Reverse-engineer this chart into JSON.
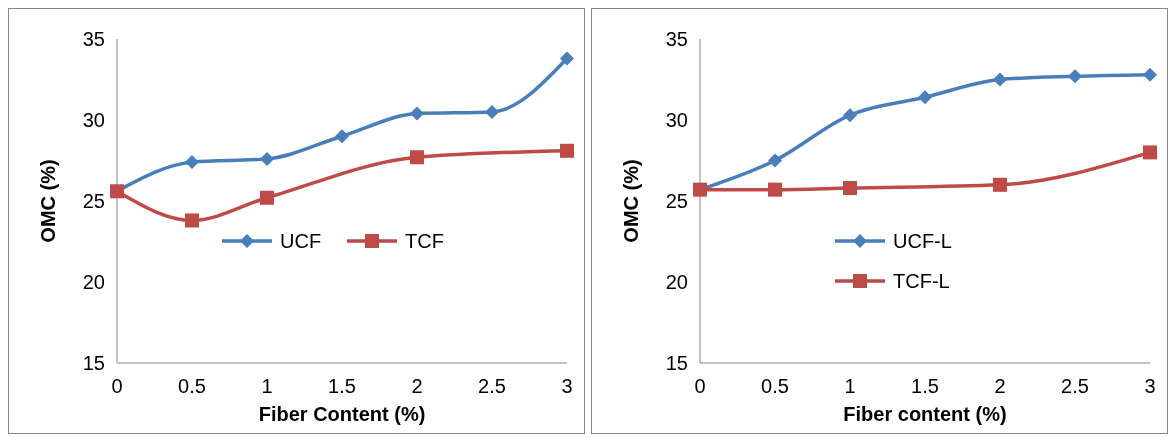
{
  "chart_data": [
    {
      "type": "line",
      "xlabel": "Fiber Content (%)",
      "ylabel": "OMC (%)",
      "xlim": [
        0,
        3
      ],
      "xticks": [
        0,
        0.5,
        1,
        1.5,
        2,
        2.5,
        3
      ],
      "ylim": [
        15,
        35
      ],
      "yticks": [
        15,
        20,
        25,
        30,
        35
      ],
      "grid": false,
      "legend": "center",
      "series": [
        {
          "name": "UCF",
          "color": "#4a7ebb",
          "marker": "diamond",
          "x": [
            0,
            0.5,
            1,
            1.5,
            2,
            2.5,
            3
          ],
          "values": [
            25.6,
            27.4,
            27.6,
            29.0,
            30.4,
            30.5,
            33.8
          ]
        },
        {
          "name": "TCF",
          "color": "#be4b48",
          "marker": "square",
          "x": [
            0,
            0.5,
            1,
            2,
            3
          ],
          "values": [
            25.6,
            23.8,
            25.2,
            27.7,
            28.1
          ]
        }
      ]
    },
    {
      "type": "line",
      "xlabel": "Fiber content (%)",
      "ylabel": "OMC (%)",
      "xlim": [
        0,
        3
      ],
      "xticks": [
        0,
        0.5,
        1,
        1.5,
        2,
        2.5,
        3
      ],
      "ylim": [
        15,
        35
      ],
      "yticks": [
        15,
        20,
        25,
        30,
        35
      ],
      "grid": false,
      "legend": "center left",
      "series": [
        {
          "name": "UCF-L",
          "color": "#4a7ebb",
          "marker": "diamond",
          "x": [
            0,
            0.5,
            1,
            1.5,
            2,
            2.5,
            3
          ],
          "values": [
            25.7,
            27.5,
            30.3,
            31.4,
            32.5,
            32.7,
            32.8
          ]
        },
        {
          "name": "TCF-L",
          "color": "#be4b48",
          "marker": "square",
          "x": [
            0,
            0.5,
            1,
            2,
            3
          ],
          "values": [
            25.7,
            25.7,
            25.8,
            26.0,
            28.0
          ]
        }
      ]
    }
  ]
}
